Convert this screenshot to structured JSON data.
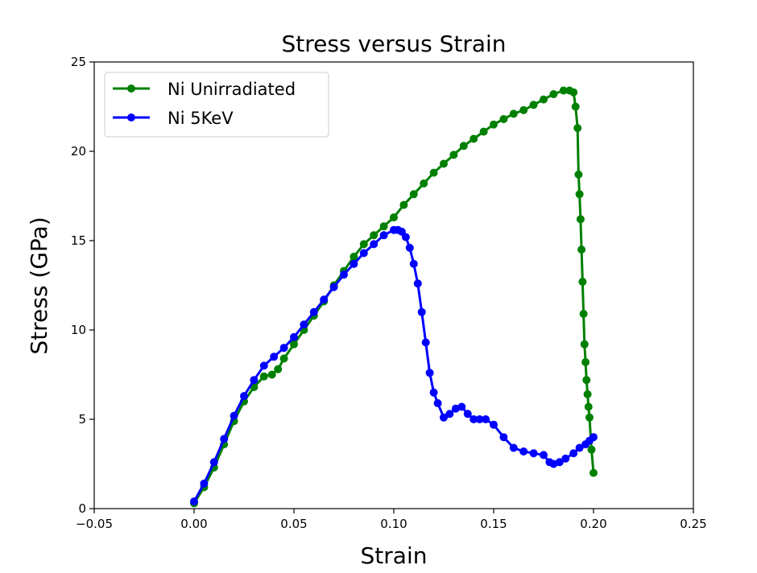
{
  "chart_data": {
    "type": "line",
    "title": "Stress versus Strain",
    "xlabel": "Strain",
    "ylabel": "Stress (GPa)",
    "xlim": [
      -0.05,
      0.25
    ],
    "ylim": [
      0,
      25
    ],
    "xticks": [
      -0.05,
      0.0,
      0.05,
      0.1,
      0.15,
      0.2,
      0.25
    ],
    "xtick_labels": [
      "−0.05",
      "0.00",
      "0.05",
      "0.10",
      "0.15",
      "0.20",
      "0.25"
    ],
    "yticks": [
      0,
      5,
      10,
      15,
      20,
      25
    ],
    "ytick_labels": [
      "0",
      "5",
      "10",
      "15",
      "20",
      "25"
    ],
    "grid": false,
    "legend_position": "top-left",
    "series": [
      {
        "name": "Ni Unirradiated",
        "color": "#008000",
        "marker": "circle",
        "x": [
          0.0,
          0.005,
          0.01,
          0.015,
          0.02,
          0.025,
          0.03,
          0.035,
          0.039,
          0.042,
          0.045,
          0.05,
          0.055,
          0.06,
          0.065,
          0.07,
          0.075,
          0.08,
          0.085,
          0.09,
          0.095,
          0.1,
          0.105,
          0.11,
          0.115,
          0.12,
          0.125,
          0.13,
          0.135,
          0.14,
          0.145,
          0.15,
          0.155,
          0.16,
          0.165,
          0.17,
          0.175,
          0.18,
          0.185,
          0.188,
          0.19,
          0.191,
          0.192,
          0.1925,
          0.193,
          0.1935,
          0.194,
          0.1945,
          0.195,
          0.1955,
          0.196,
          0.1965,
          0.197,
          0.1975,
          0.198,
          0.199,
          0.2
        ],
        "y": [
          0.3,
          1.2,
          2.3,
          3.6,
          4.9,
          6.0,
          6.8,
          7.4,
          7.5,
          7.8,
          8.4,
          9.2,
          10.0,
          10.8,
          11.6,
          12.5,
          13.3,
          14.1,
          14.8,
          15.3,
          15.8,
          16.3,
          17.0,
          17.6,
          18.2,
          18.8,
          19.3,
          19.8,
          20.3,
          20.7,
          21.1,
          21.5,
          21.8,
          22.1,
          22.3,
          22.6,
          22.9,
          23.2,
          23.4,
          23.4,
          23.3,
          22.5,
          21.3,
          18.7,
          17.6,
          16.2,
          14.5,
          12.7,
          10.9,
          9.2,
          8.2,
          7.2,
          6.4,
          5.7,
          5.1,
          3.3,
          2.0
        ]
      },
      {
        "name": "Ni 5KeV",
        "color": "#0000ff",
        "marker": "circle",
        "x": [
          0.0,
          0.005,
          0.01,
          0.015,
          0.02,
          0.025,
          0.03,
          0.035,
          0.04,
          0.045,
          0.05,
          0.055,
          0.06,
          0.065,
          0.07,
          0.075,
          0.08,
          0.085,
          0.09,
          0.095,
          0.1,
          0.102,
          0.104,
          0.106,
          0.108,
          0.11,
          0.112,
          0.114,
          0.116,
          0.118,
          0.12,
          0.122,
          0.125,
          0.128,
          0.131,
          0.134,
          0.137,
          0.14,
          0.143,
          0.146,
          0.15,
          0.155,
          0.16,
          0.165,
          0.17,
          0.175,
          0.178,
          0.18,
          0.183,
          0.186,
          0.19,
          0.193,
          0.196,
          0.198,
          0.2
        ],
        "y": [
          0.4,
          1.4,
          2.6,
          3.9,
          5.2,
          6.3,
          7.2,
          8.0,
          8.5,
          9.0,
          9.6,
          10.3,
          11.0,
          11.7,
          12.4,
          13.1,
          13.7,
          14.3,
          14.8,
          15.3,
          15.6,
          15.6,
          15.5,
          15.2,
          14.6,
          13.7,
          12.6,
          11.0,
          9.3,
          7.6,
          6.5,
          5.9,
          5.1,
          5.3,
          5.6,
          5.7,
          5.3,
          5.0,
          5.0,
          5.0,
          4.7,
          4.0,
          3.4,
          3.2,
          3.1,
          3.0,
          2.6,
          2.5,
          2.6,
          2.8,
          3.1,
          3.4,
          3.6,
          3.8,
          4.0
        ]
      }
    ]
  }
}
